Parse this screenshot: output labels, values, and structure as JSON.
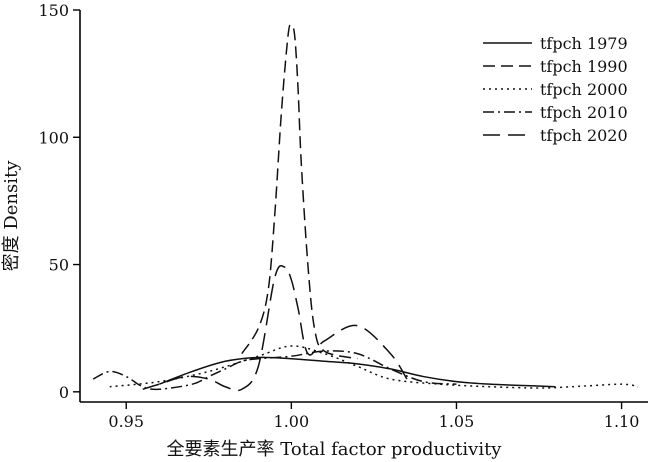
{
  "chart_data": {
    "type": "line",
    "xlabel": "全要素生产率 Total factor productivity",
    "ylabel": "密度 Density",
    "xlim": [
      0.936,
      1.108
    ],
    "ylim": [
      -4,
      150
    ],
    "x_ticks": [
      0.95,
      1.0,
      1.05,
      1.1
    ],
    "x_tick_labels": [
      "0.95",
      "1.00",
      "1.05",
      "1.10"
    ],
    "y_ticks": [
      0,
      50,
      100,
      150
    ],
    "y_tick_labels": [
      "0",
      "50",
      "100",
      "150"
    ],
    "grid": false,
    "legend_position": "top-right",
    "series": [
      {
        "name": "tfpch 1979",
        "dash": "solid",
        "x": [
          0.96,
          0.97,
          0.98,
          0.99,
          1.0,
          1.01,
          1.02,
          1.03,
          1.04,
          1.05,
          1.06,
          1.07,
          1.08
        ],
        "y": [
          3,
          8,
          12,
          13.5,
          13,
          12,
          11,
          9,
          6,
          4,
          3,
          2.5,
          2
        ]
      },
      {
        "name": "tfpch 1990",
        "dash": "long-dash",
        "x": [
          0.985,
          0.99,
          0.993,
          0.995,
          0.997,
          0.999,
          1.0,
          1.001,
          1.002,
          1.003,
          1.005,
          1.007,
          1.01,
          1.02
        ],
        "y": [
          15,
          25,
          40,
          70,
          110,
          140,
          144,
          140,
          120,
          90,
          50,
          25,
          16,
          13
        ]
      },
      {
        "name": "tfpch 2000",
        "dash": "dotted",
        "x": [
          0.945,
          0.96,
          0.975,
          0.99,
          1.0,
          1.01,
          1.02,
          1.03,
          1.045,
          1.06,
          1.075,
          1.085,
          1.1,
          1.105
        ],
        "y": [
          2,
          4,
          8,
          14,
          18,
          15,
          10,
          5,
          3,
          2,
          1.5,
          2,
          3,
          2
        ]
      },
      {
        "name": "tfpch 2010",
        "dash": "dash-dot",
        "x": [
          0.94,
          0.945,
          0.95,
          0.955,
          0.96,
          0.97,
          0.975,
          0.98,
          0.985,
          0.99,
          1.0,
          1.01,
          1.02,
          1.03,
          1.04,
          1.05
        ],
        "y": [
          5,
          8,
          6,
          2,
          1,
          3,
          6,
          9,
          12,
          13,
          14,
          16,
          15,
          9,
          4,
          3
        ]
      },
      {
        "name": "tfpch 2020",
        "dash": "wide-dash",
        "x": [
          0.955,
          0.96,
          0.968,
          0.975,
          0.98,
          0.985,
          0.99,
          0.995,
          0.998,
          1.0,
          1.002,
          1.005,
          1.01,
          1.02,
          1.03,
          1.035
        ],
        "y": [
          1,
          3,
          6,
          5,
          2,
          1,
          10,
          45,
          49,
          44,
          33,
          15,
          20,
          26,
          15,
          5
        ]
      }
    ]
  }
}
